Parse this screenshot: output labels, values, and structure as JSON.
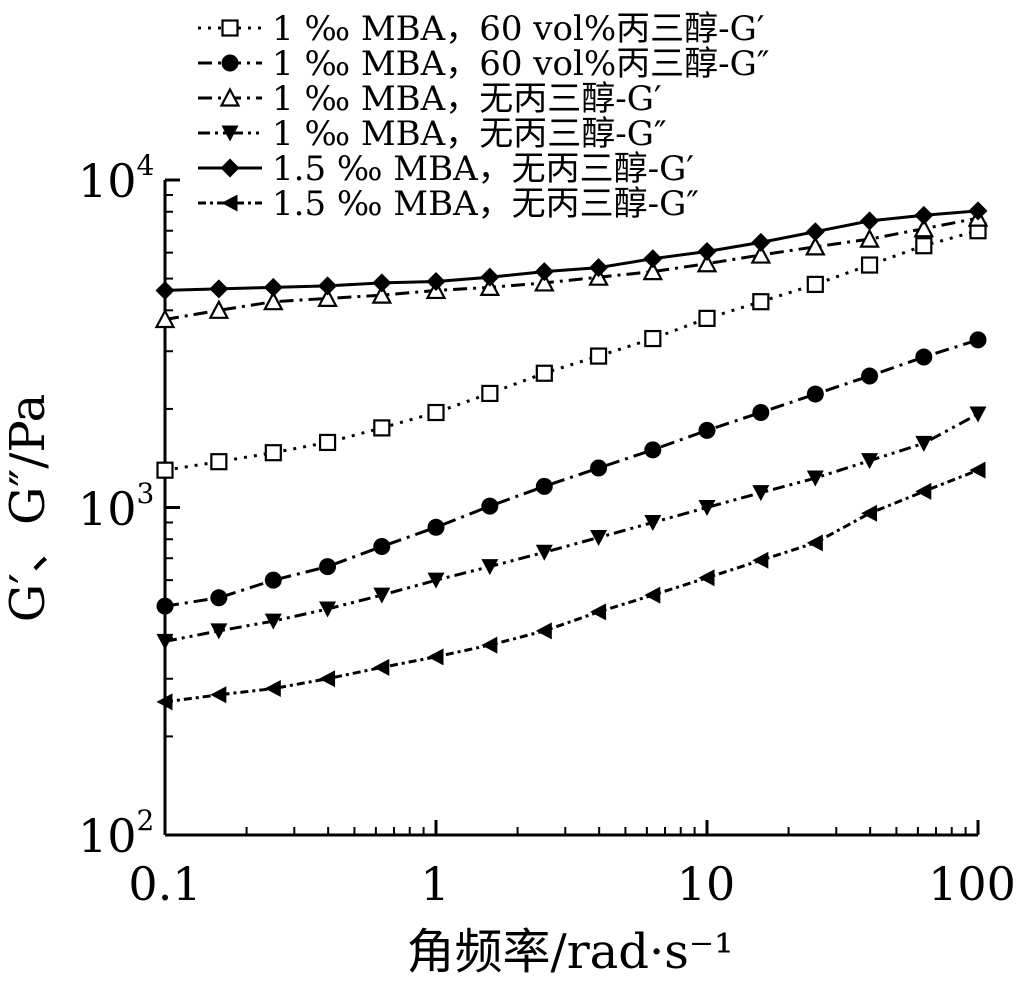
{
  "chart_data": {
    "type": "line",
    "xscale": "log",
    "yscale": "log",
    "xlim": [
      0.1,
      100
    ],
    "ylim": [
      100,
      10000
    ],
    "xlabel": "角频率/rad·s⁻¹",
    "ylabel": "G′、G″/Pa",
    "x_tick_labels": [
      "0.1",
      "1",
      "10",
      "100"
    ],
    "y_tick_labels": [
      {
        "base": "10",
        "exp": "2"
      },
      {
        "base": "10",
        "exp": "3"
      },
      {
        "base": "10",
        "exp": "4"
      }
    ],
    "legend_position": "top-left",
    "x": [
      0.1,
      0.158,
      0.251,
      0.398,
      0.631,
      1,
      1.58,
      2.51,
      3.98,
      6.31,
      10,
      15.8,
      25.1,
      39.8,
      63.1,
      100
    ],
    "series": [
      {
        "name": "1 ‰ MBA，60 vol%丙三醇-G′",
        "marker": "open-square",
        "line": "dotted",
        "values": [
          1300,
          1380,
          1470,
          1580,
          1750,
          1950,
          2230,
          2570,
          2900,
          3280,
          3780,
          4250,
          4800,
          5500,
          6300,
          7000
        ]
      },
      {
        "name": "1 ‰ MBA，60 vol%丙三醇-G″",
        "marker": "filled-circle",
        "line": "dash-dot",
        "values": [
          500,
          530,
          600,
          660,
          760,
          870,
          1010,
          1160,
          1320,
          1500,
          1720,
          1950,
          2220,
          2520,
          2880,
          3250
        ]
      },
      {
        "name": "1 ‰ MBA，无丙三醇-G′",
        "marker": "open-triangle-up",
        "line": "dash-dot",
        "values": [
          3750,
          4000,
          4250,
          4350,
          4450,
          4600,
          4700,
          4850,
          5050,
          5250,
          5550,
          5900,
          6250,
          6600,
          7100,
          7650
        ]
      },
      {
        "name": "1 ‰ MBA，无丙三醇-G″",
        "marker": "filled-triangle-down",
        "line": "dash-dot-dot",
        "values": [
          390,
          420,
          450,
          490,
          540,
          600,
          660,
          730,
          810,
          900,
          1000,
          1110,
          1230,
          1390,
          1570,
          1930
        ]
      },
      {
        "name": "1.5 ‰ MBA，无丙三醇-G′",
        "marker": "filled-diamond",
        "line": "solid",
        "values": [
          4600,
          4650,
          4700,
          4750,
          4850,
          4900,
          5050,
          5250,
          5400,
          5750,
          6050,
          6450,
          6950,
          7500,
          7800,
          8050
        ]
      },
      {
        "name": "1.5 ‰ MBA，无丙三醇-G″",
        "marker": "filled-triangle-left",
        "line": "dense-dash-dot",
        "values": [
          255,
          268,
          280,
          300,
          325,
          350,
          380,
          420,
          480,
          540,
          610,
          690,
          780,
          960,
          1120,
          1300
        ]
      }
    ]
  }
}
